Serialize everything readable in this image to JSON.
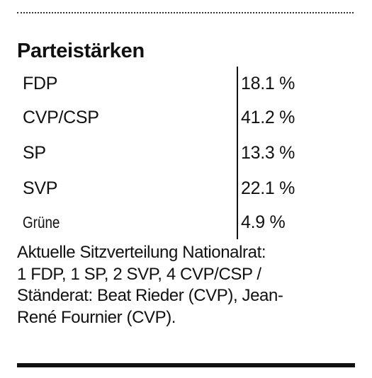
{
  "heading": "Parteistärken",
  "rows": [
    {
      "party": "FDP",
      "share": "18.1 %"
    },
    {
      "party": "CVP/CSP",
      "share": "41.2 %"
    },
    {
      "party": "SP",
      "share": "13.3 %"
    },
    {
      "party": "SVP",
      "share": "22.1 %"
    },
    {
      "party": "Grüne",
      "share": "4.9 %"
    }
  ],
  "note": {
    "line1": "Aktuelle Sitzverteilung Nationalrat:",
    "line2": "1 FDP, 1 SP, 2 SVP, 4 CVP/CSP /",
    "line3": "Ständerat: Beat Rieder (CVP), Jean-",
    "line4": "René Fournier (CVP)."
  }
}
